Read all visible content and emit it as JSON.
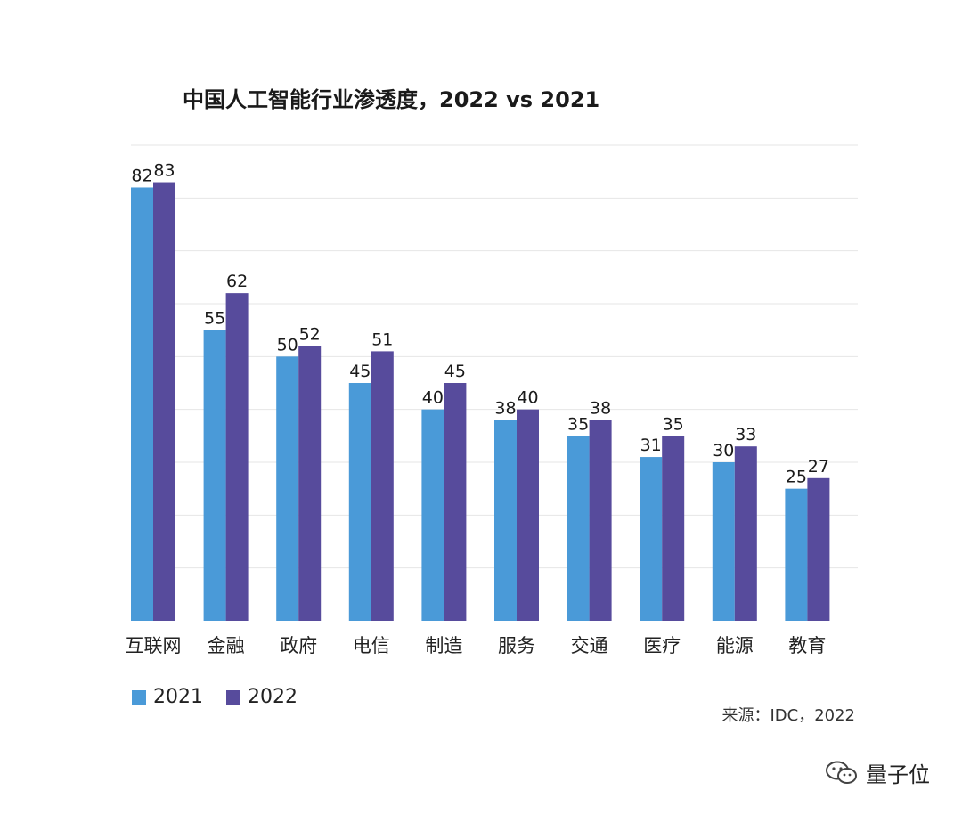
{
  "chart_data": {
    "type": "bar",
    "title": "中国人工智能行业渗透度，2022 vs 2021",
    "categories": [
      "互联网",
      "金融",
      "政府",
      "电信",
      "制造",
      "服务",
      "交通",
      "医疗",
      "能源",
      "教育"
    ],
    "series": [
      {
        "name": "2021",
        "color": "#4a9ad8",
        "values": [
          82,
          55,
          50,
          45,
          40,
          38,
          35,
          31,
          30,
          25
        ]
      },
      {
        "name": "2022",
        "color": "#574b9c",
        "values": [
          83,
          62,
          52,
          51,
          45,
          40,
          38,
          35,
          33,
          27
        ]
      }
    ],
    "ylim": [
      0,
      90
    ],
    "grid": true,
    "legend_position": "bottom-left",
    "xlabel": "",
    "ylabel": ""
  },
  "legend": {
    "item1": "2021",
    "item2": "2022"
  },
  "source": "来源：IDC，2022",
  "watermark": {
    "text": "量子位",
    "icon": "wechat-icon"
  }
}
